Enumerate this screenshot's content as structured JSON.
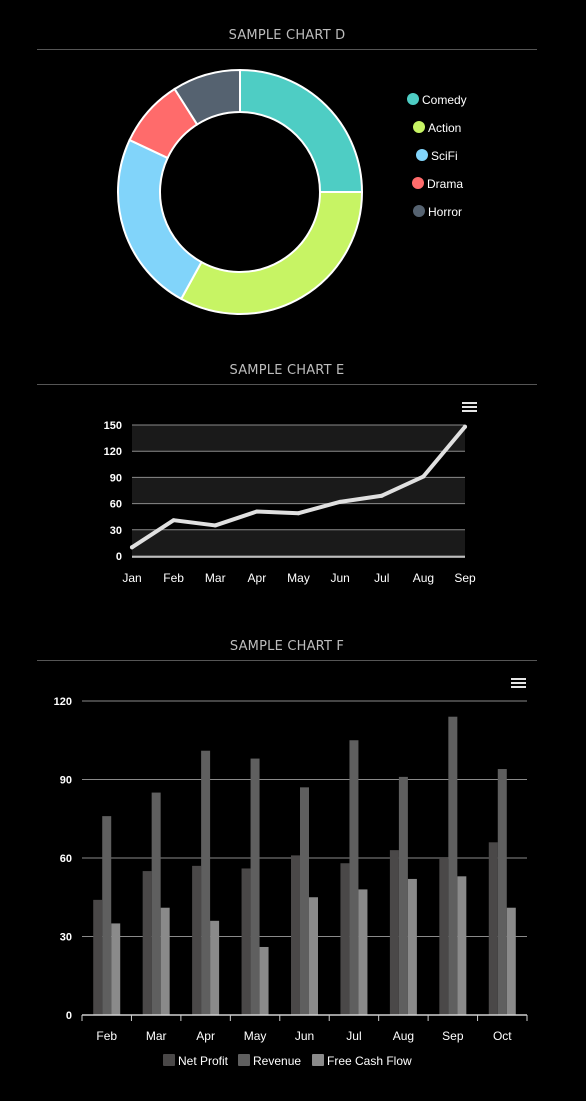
{
  "charts": [
    {
      "title": "SAMPLE CHART D",
      "chart_data": {
        "type": "pie",
        "variant": "doughnut",
        "legend_position": "right",
        "categories": [
          "Comedy",
          "Action",
          "SciFi",
          "Drama",
          "Horror"
        ],
        "values": [
          25,
          33,
          24,
          9,
          9
        ],
        "colors": [
          "#4ecdc4",
          "#c7f464",
          "#81d4fa",
          "#ff6b6b",
          "#556270"
        ]
      }
    },
    {
      "title": "SAMPLE CHART E",
      "chart_data": {
        "type": "line",
        "categories": [
          "Jan",
          "Feb",
          "Mar",
          "Apr",
          "May",
          "Jun",
          "Jul",
          "Aug",
          "Sep"
        ],
        "series": [
          {
            "values": [
              10,
              41,
              35,
              51,
              49,
              62,
              69,
              91,
              148
            ]
          }
        ],
        "yticks": [
          0,
          30,
          60,
          90,
          120,
          150
        ],
        "ylim": [
          0,
          150
        ],
        "grid": true,
        "line_color": "#e0e0e0",
        "band_color": "#1a1a1a"
      }
    },
    {
      "title": "SAMPLE CHART F",
      "chart_data": {
        "type": "bar",
        "categories": [
          "Feb",
          "Mar",
          "Apr",
          "May",
          "Jun",
          "Jul",
          "Aug",
          "Sep",
          "Oct"
        ],
        "series": [
          {
            "name": "Net Profit",
            "values": [
              44,
              55,
              57,
              56,
              61,
              58,
              63,
              60,
              66
            ],
            "color": "#4a4848"
          },
          {
            "name": "Revenue",
            "values": [
              76,
              85,
              101,
              98,
              87,
              105,
              91,
              114,
              94
            ],
            "color": "#5f5f5f"
          },
          {
            "name": "Free Cash Flow",
            "values": [
              35,
              41,
              36,
              26,
              45,
              48,
              52,
              53,
              41
            ],
            "color": "#8a8a8a"
          }
        ],
        "yticks": [
          0,
          30,
          60,
          90,
          120
        ],
        "ylim": [
          0,
          120
        ],
        "grid": true,
        "legend_position": "bottom"
      }
    }
  ],
  "menu_icon": "hamburger-menu-icon"
}
